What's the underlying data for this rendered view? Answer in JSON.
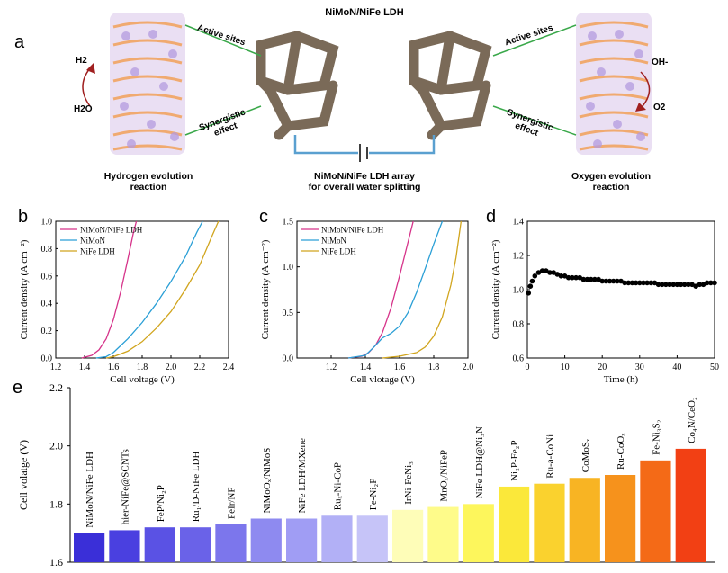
{
  "schematic": {
    "title": "NiMoN/NiFe LDH",
    "panel_label": "a",
    "left_caption": [
      "Hydrogen evolution",
      "reaction"
    ],
    "center_caption": [
      "NiMoN/NiFe LDH array",
      "for overall water splitting"
    ],
    "right_caption": [
      "Oxygen evolution",
      "reaction"
    ],
    "active_sites_label": "Active sites",
    "synergistic_label": [
      "Synergistic",
      "effect"
    ],
    "left_species_top": "H2",
    "left_species_bottom": "H2O",
    "right_species_top": "OH-",
    "right_species_bottom": "O2"
  },
  "chart_data": [
    {
      "panel": "b",
      "type": "line",
      "xlabel": "Cell voltage (V)",
      "ylabel": "Current density (A cm⁻²)",
      "xlim": [
        1.2,
        2.4
      ],
      "ylim": [
        0,
        1.0
      ],
      "xticks": [
        "1.2",
        "1.4",
        "1.6",
        "1.8",
        "2.0",
        "2.2",
        "2.4"
      ],
      "yticks": [
        "0.0",
        "0.2",
        "0.4",
        "0.6",
        "0.8",
        "1.0"
      ],
      "legend_position": "top-left",
      "series": [
        {
          "name": "NiMoN/NiFe LDH",
          "color": "#d6338a",
          "x": [
            1.38,
            1.45,
            1.5,
            1.55,
            1.6,
            1.65,
            1.7,
            1.74,
            1.76
          ],
          "y": [
            0,
            0.02,
            0.06,
            0.14,
            0.28,
            0.48,
            0.72,
            0.92,
            1.0
          ]
        },
        {
          "name": "NiMoN",
          "color": "#2a9fd6",
          "x": [
            1.48,
            1.55,
            1.6,
            1.7,
            1.8,
            1.9,
            2.0,
            2.1,
            2.18,
            2.22
          ],
          "y": [
            0,
            0.01,
            0.04,
            0.14,
            0.26,
            0.4,
            0.56,
            0.74,
            0.92,
            1.0
          ]
        },
        {
          "name": "NiFe LDH",
          "color": "#d1a51e",
          "x": [
            1.55,
            1.6,
            1.7,
            1.8,
            1.9,
            2.0,
            2.1,
            2.2,
            2.28,
            2.33
          ],
          "y": [
            0,
            0.01,
            0.05,
            0.12,
            0.22,
            0.34,
            0.5,
            0.68,
            0.88,
            1.0
          ]
        }
      ]
    },
    {
      "panel": "c",
      "type": "line",
      "xlabel": "Cell vlotage (V)",
      "ylabel": "Current density (A cm⁻²)",
      "xlim": [
        1.0,
        2.0
      ],
      "ylim": [
        0,
        1.5
      ],
      "xticks": [
        "1.2",
        "1.4",
        "1.6",
        "1.8",
        "2.0"
      ],
      "yticks": [
        "0.0",
        "0.5",
        "1.0",
        "1.5"
      ],
      "legend_position": "top-left",
      "series": [
        {
          "name": "NiMoN/NiFe LDH",
          "color": "#d6338a",
          "x": [
            1.3,
            1.38,
            1.42,
            1.46,
            1.5,
            1.55,
            1.6,
            1.64,
            1.68
          ],
          "y": [
            0,
            0.02,
            0.06,
            0.14,
            0.28,
            0.55,
            0.9,
            1.2,
            1.5
          ]
        },
        {
          "name": "NiMoN",
          "color": "#2a9fd6",
          "x": [
            1.3,
            1.4,
            1.45,
            1.5,
            1.55,
            1.6,
            1.65,
            1.7,
            1.75,
            1.8,
            1.85
          ],
          "y": [
            0,
            0.03,
            0.12,
            0.22,
            0.27,
            0.35,
            0.5,
            0.72,
            0.98,
            1.25,
            1.5
          ]
        },
        {
          "name": "NiFe LDH",
          "color": "#d1a51e",
          "x": [
            1.5,
            1.6,
            1.7,
            1.75,
            1.8,
            1.85,
            1.9,
            1.93,
            1.96
          ],
          "y": [
            0,
            0.02,
            0.06,
            0.12,
            0.24,
            0.45,
            0.8,
            1.1,
            1.5
          ]
        }
      ]
    },
    {
      "panel": "d",
      "type": "scatter",
      "xlabel": "Time (h)",
      "ylabel": "Current density (A cm⁻²)",
      "xlim": [
        0,
        50
      ],
      "ylim": [
        0.6,
        1.4
      ],
      "xticks": [
        "0",
        "10",
        "20",
        "30",
        "40",
        "50"
      ],
      "yticks": [
        "0.6",
        "0.8",
        "1.0",
        "1.2",
        "1.4"
      ],
      "color": "#000000",
      "x": [
        0.3,
        0.8,
        1.3,
        2,
        3,
        4,
        5,
        6,
        7,
        8,
        9,
        10,
        11,
        12,
        13,
        14,
        15,
        16,
        17,
        18,
        19,
        20,
        21,
        22,
        23,
        24,
        25,
        26,
        27,
        28,
        29,
        30,
        31,
        32,
        33,
        34,
        35,
        36,
        37,
        38,
        39,
        40,
        41,
        42,
        43,
        44,
        45,
        46,
        47,
        48,
        49,
        50
      ],
      "y": [
        0.98,
        1.02,
        1.05,
        1.08,
        1.1,
        1.11,
        1.11,
        1.1,
        1.1,
        1.09,
        1.08,
        1.08,
        1.07,
        1.07,
        1.07,
        1.07,
        1.06,
        1.06,
        1.06,
        1.06,
        1.06,
        1.05,
        1.05,
        1.05,
        1.05,
        1.05,
        1.05,
        1.04,
        1.04,
        1.04,
        1.04,
        1.04,
        1.04,
        1.04,
        1.04,
        1.04,
        1.03,
        1.03,
        1.03,
        1.03,
        1.03,
        1.03,
        1.03,
        1.03,
        1.03,
        1.03,
        1.02,
        1.03,
        1.03,
        1.04,
        1.04,
        1.04
      ]
    },
    {
      "panel": "e",
      "type": "bar",
      "ylabel": "Cell volatge (V)",
      "ylim": [
        1.6,
        2.2
      ],
      "yticks": [
        "1.6",
        "1.8",
        "2.0",
        "2.2"
      ],
      "categories": [
        "NiMoN/NiFe LDH",
        "hier-NiFe@SCNTs",
        "FeP/Ni₂P",
        "Ru₁/D-NiFe LDH",
        "FeIr/NF",
        "NiMoOₓ/NiMoS",
        "NiFe LDH/MXene",
        "Ruₓ-Ni-CoP",
        "Fe-Ni₂P",
        "IrNi-FeNi₃",
        "MnOₓ/NiFeP",
        "NiFe LDH@Ni₃N",
        "Ni₂P-Fe₂P",
        "Ru-a-CoNi",
        "CoMoSₓ",
        "Ru-CoOₓ",
        "Fe-Ni₃S₂",
        "Co₄N/CeO₂"
      ],
      "values": [
        1.7,
        1.71,
        1.72,
        1.72,
        1.73,
        1.75,
        1.75,
        1.76,
        1.76,
        1.78,
        1.79,
        1.8,
        1.86,
        1.87,
        1.89,
        1.9,
        1.95,
        1.99
      ],
      "colors": [
        "#3a2fd8",
        "#4a40e0",
        "#5a52e4",
        "#6a62e8",
        "#7c76ec",
        "#8e8af0",
        "#a09df4",
        "#b2b0f6",
        "#c6c4f8",
        "#fefdb8",
        "#fefb8a",
        "#fdf65c",
        "#fbe83a",
        "#fad22e",
        "#f8b423",
        "#f6921c",
        "#f46a17",
        "#f24014"
      ]
    }
  ]
}
